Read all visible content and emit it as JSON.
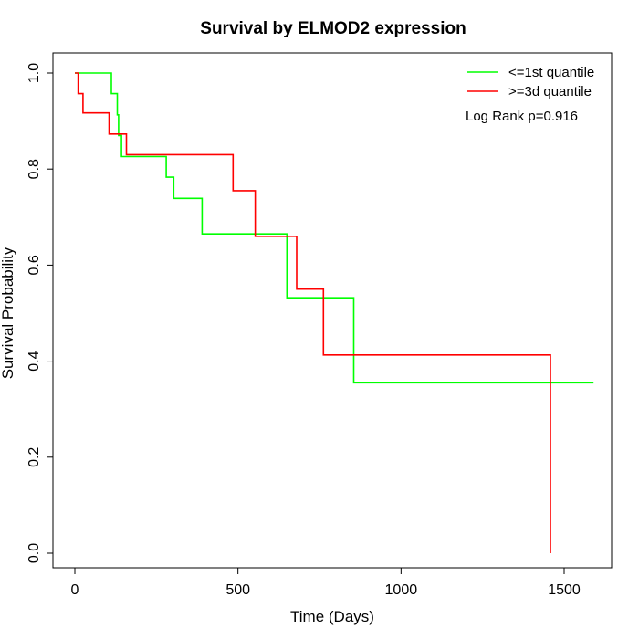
{
  "chart_data": {
    "type": "line",
    "subtype": "kaplan-meier step",
    "title": "Survival by ELMOD2 expression",
    "xlabel": "Time (Days)",
    "ylabel": "Survival Probability",
    "xlim": [
      0,
      1650
    ],
    "ylim": [
      0,
      1.05
    ],
    "x_ticks": [
      0,
      500,
      1000,
      1500
    ],
    "y_ticks": [
      0.0,
      0.2,
      0.4,
      0.6,
      0.8,
      1.0
    ],
    "x_tick_labels": [
      "0",
      "500",
      "1000",
      "1500"
    ],
    "y_tick_labels": [
      "0.0",
      "0.2",
      "0.4",
      "0.6",
      "0.8",
      "1.0"
    ],
    "grid": false,
    "legend_position": "top-right",
    "annotation": "Log Rank p=0.916",
    "series": [
      {
        "name": "<=1st quantile",
        "color": "#00ff00",
        "points": [
          [
            0,
            1.0
          ],
          [
            112,
            1.0
          ],
          [
            112,
            0.957
          ],
          [
            130,
            0.957
          ],
          [
            130,
            0.913
          ],
          [
            134,
            0.913
          ],
          [
            134,
            0.87
          ],
          [
            143,
            0.87
          ],
          [
            143,
            0.826
          ],
          [
            280,
            0.826
          ],
          [
            280,
            0.783
          ],
          [
            303,
            0.783
          ],
          [
            303,
            0.739
          ],
          [
            390,
            0.739
          ],
          [
            390,
            0.665
          ],
          [
            650,
            0.665
          ],
          [
            650,
            0.532
          ],
          [
            855,
            0.532
          ],
          [
            855,
            0.355
          ],
          [
            1590,
            0.355
          ]
        ]
      },
      {
        "name": ">=3d quantile",
        "color": "#ff0000",
        "points": [
          [
            0,
            1.0
          ],
          [
            10,
            1.0
          ],
          [
            10,
            0.957
          ],
          [
            25,
            0.957
          ],
          [
            25,
            0.917
          ],
          [
            105,
            0.917
          ],
          [
            105,
            0.873
          ],
          [
            158,
            0.873
          ],
          [
            158,
            0.83
          ],
          [
            485,
            0.83
          ],
          [
            485,
            0.755
          ],
          [
            553,
            0.755
          ],
          [
            553,
            0.66
          ],
          [
            680,
            0.66
          ],
          [
            680,
            0.55
          ],
          [
            762,
            0.55
          ],
          [
            762,
            0.413
          ],
          [
            1458,
            0.413
          ],
          [
            1458,
            0.0
          ]
        ]
      }
    ]
  }
}
